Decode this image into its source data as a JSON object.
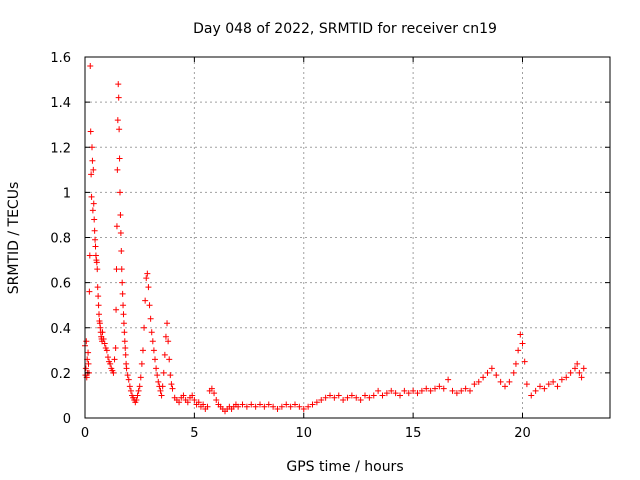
{
  "chart_data": {
    "type": "scatter",
    "title": "Day 048 of 2022, SRMTID for receiver cn19",
    "xlabel": "GPS time / hours",
    "ylabel": "SRMTID / TECUs",
    "xlim": [
      0,
      24
    ],
    "ylim": [
      0,
      1.6
    ],
    "xticks": [
      0,
      5,
      10,
      15,
      20
    ],
    "xtick_labels": [
      "0",
      "5",
      "10",
      "15",
      "20"
    ],
    "yticks": [
      0,
      0.2,
      0.4,
      0.6,
      0.8,
      1.0,
      1.2,
      1.4,
      1.6
    ],
    "ytick_labels": [
      "0",
      "0.2",
      "0.4",
      "0.6",
      "0.8",
      "1",
      "1.2",
      "1.4",
      "1.6"
    ],
    "grid": true,
    "marker": "+",
    "color": "#ff0000",
    "series": [
      {
        "name": "SRMTID",
        "points": [
          [
            0.0,
            0.32
          ],
          [
            0.02,
            0.19
          ],
          [
            0.04,
            0.22
          ],
          [
            0.06,
            0.34
          ],
          [
            0.08,
            0.18
          ],
          [
            0.1,
            0.26
          ],
          [
            0.12,
            0.2
          ],
          [
            0.14,
            0.29
          ],
          [
            0.16,
            0.24
          ],
          [
            0.18,
            0.2
          ],
          [
            0.2,
            0.56
          ],
          [
            0.22,
            0.72
          ],
          [
            0.24,
            1.56
          ],
          [
            0.26,
            1.27
          ],
          [
            0.28,
            1.08
          ],
          [
            0.3,
            0.98
          ],
          [
            0.32,
            1.2
          ],
          [
            0.34,
            1.14
          ],
          [
            0.36,
            0.92
          ],
          [
            0.38,
            1.1
          ],
          [
            0.4,
            0.95
          ],
          [
            0.42,
            0.88
          ],
          [
            0.44,
            0.83
          ],
          [
            0.46,
            0.79
          ],
          [
            0.48,
            0.76
          ],
          [
            0.5,
            0.72
          ],
          [
            0.52,
            0.7
          ],
          [
            0.54,
            0.69
          ],
          [
            0.56,
            0.66
          ],
          [
            0.58,
            0.58
          ],
          [
            0.6,
            0.54
          ],
          [
            0.62,
            0.5
          ],
          [
            0.64,
            0.46
          ],
          [
            0.66,
            0.43
          ],
          [
            0.68,
            0.42
          ],
          [
            0.7,
            0.4
          ],
          [
            0.72,
            0.38
          ],
          [
            0.74,
            0.36
          ],
          [
            0.76,
            0.35
          ],
          [
            0.78,
            0.34
          ],
          [
            0.8,
            0.38
          ],
          [
            0.85,
            0.35
          ],
          [
            0.9,
            0.33
          ],
          [
            0.95,
            0.31
          ],
          [
            1.0,
            0.3
          ],
          [
            1.05,
            0.27
          ],
          [
            1.1,
            0.25
          ],
          [
            1.15,
            0.24
          ],
          [
            1.2,
            0.22
          ],
          [
            1.25,
            0.21
          ],
          [
            1.3,
            0.2
          ],
          [
            1.35,
            0.26
          ],
          [
            1.4,
            0.31
          ],
          [
            1.42,
            0.48
          ],
          [
            1.44,
            0.66
          ],
          [
            1.46,
            0.85
          ],
          [
            1.48,
            1.1
          ],
          [
            1.5,
            1.32
          ],
          [
            1.52,
            1.48
          ],
          [
            1.54,
            1.42
          ],
          [
            1.56,
            1.28
          ],
          [
            1.58,
            1.15
          ],
          [
            1.6,
            1.0
          ],
          [
            1.62,
            0.9
          ],
          [
            1.64,
            0.82
          ],
          [
            1.66,
            0.74
          ],
          [
            1.68,
            0.66
          ],
          [
            1.7,
            0.6
          ],
          [
            1.72,
            0.55
          ],
          [
            1.74,
            0.5
          ],
          [
            1.76,
            0.46
          ],
          [
            1.78,
            0.42
          ],
          [
            1.8,
            0.38
          ],
          [
            1.82,
            0.34
          ],
          [
            1.84,
            0.31
          ],
          [
            1.86,
            0.28
          ],
          [
            1.88,
            0.24
          ],
          [
            1.9,
            0.22
          ],
          [
            1.95,
            0.19
          ],
          [
            2.0,
            0.17
          ],
          [
            2.05,
            0.14
          ],
          [
            2.1,
            0.12
          ],
          [
            2.15,
            0.1
          ],
          [
            2.2,
            0.09
          ],
          [
            2.25,
            0.08
          ],
          [
            2.3,
            0.07
          ],
          [
            2.35,
            0.08
          ],
          [
            2.4,
            0.1
          ],
          [
            2.45,
            0.12
          ],
          [
            2.5,
            0.14
          ],
          [
            2.55,
            0.18
          ],
          [
            2.6,
            0.24
          ],
          [
            2.65,
            0.3
          ],
          [
            2.7,
            0.4
          ],
          [
            2.75,
            0.52
          ],
          [
            2.8,
            0.62
          ],
          [
            2.85,
            0.64
          ],
          [
            2.9,
            0.58
          ],
          [
            2.95,
            0.5
          ],
          [
            3.0,
            0.44
          ],
          [
            3.05,
            0.38
          ],
          [
            3.1,
            0.34
          ],
          [
            3.15,
            0.3
          ],
          [
            3.2,
            0.26
          ],
          [
            3.25,
            0.22
          ],
          [
            3.3,
            0.19
          ],
          [
            3.35,
            0.16
          ],
          [
            3.4,
            0.14
          ],
          [
            3.45,
            0.12
          ],
          [
            3.5,
            0.1
          ],
          [
            3.55,
            0.14
          ],
          [
            3.6,
            0.2
          ],
          [
            3.65,
            0.28
          ],
          [
            3.7,
            0.36
          ],
          [
            3.75,
            0.42
          ],
          [
            3.8,
            0.34
          ],
          [
            3.85,
            0.26
          ],
          [
            3.9,
            0.19
          ],
          [
            3.95,
            0.15
          ],
          [
            4.0,
            0.13
          ],
          [
            4.1,
            0.09
          ],
          [
            4.2,
            0.08
          ],
          [
            4.3,
            0.07
          ],
          [
            4.4,
            0.09
          ],
          [
            4.5,
            0.1
          ],
          [
            4.6,
            0.08
          ],
          [
            4.7,
            0.07
          ],
          [
            4.8,
            0.09
          ],
          [
            4.9,
            0.1
          ],
          [
            5.0,
            0.08
          ],
          [
            5.1,
            0.06
          ],
          [
            5.2,
            0.07
          ],
          [
            5.3,
            0.05
          ],
          [
            5.4,
            0.06
          ],
          [
            5.5,
            0.04
          ],
          [
            5.6,
            0.05
          ],
          [
            5.7,
            0.12
          ],
          [
            5.8,
            0.13
          ],
          [
            5.9,
            0.11
          ],
          [
            6.0,
            0.08
          ],
          [
            6.1,
            0.06
          ],
          [
            6.2,
            0.05
          ],
          [
            6.3,
            0.04
          ],
          [
            6.4,
            0.03
          ],
          [
            6.5,
            0.04
          ],
          [
            6.6,
            0.05
          ],
          [
            6.7,
            0.04
          ],
          [
            6.8,
            0.05
          ],
          [
            6.9,
            0.06
          ],
          [
            7.0,
            0.05
          ],
          [
            7.2,
            0.06
          ],
          [
            7.4,
            0.05
          ],
          [
            7.6,
            0.06
          ],
          [
            7.8,
            0.05
          ],
          [
            8.0,
            0.06
          ],
          [
            8.2,
            0.05
          ],
          [
            8.4,
            0.06
          ],
          [
            8.6,
            0.05
          ],
          [
            8.8,
            0.04
          ],
          [
            9.0,
            0.05
          ],
          [
            9.2,
            0.06
          ],
          [
            9.4,
            0.05
          ],
          [
            9.6,
            0.06
          ],
          [
            9.8,
            0.05
          ],
          [
            10.0,
            0.04
          ],
          [
            10.2,
            0.05
          ],
          [
            10.4,
            0.06
          ],
          [
            10.6,
            0.07
          ],
          [
            10.8,
            0.08
          ],
          [
            11.0,
            0.09
          ],
          [
            11.2,
            0.1
          ],
          [
            11.4,
            0.09
          ],
          [
            11.6,
            0.1
          ],
          [
            11.8,
            0.08
          ],
          [
            12.0,
            0.09
          ],
          [
            12.2,
            0.1
          ],
          [
            12.4,
            0.09
          ],
          [
            12.6,
            0.08
          ],
          [
            12.8,
            0.1
          ],
          [
            13.0,
            0.09
          ],
          [
            13.2,
            0.1
          ],
          [
            13.4,
            0.12
          ],
          [
            13.6,
            0.1
          ],
          [
            13.8,
            0.11
          ],
          [
            14.0,
            0.12
          ],
          [
            14.2,
            0.11
          ],
          [
            14.4,
            0.1
          ],
          [
            14.6,
            0.12
          ],
          [
            14.8,
            0.11
          ],
          [
            15.0,
            0.12
          ],
          [
            15.2,
            0.11
          ],
          [
            15.4,
            0.12
          ],
          [
            15.6,
            0.13
          ],
          [
            15.8,
            0.12
          ],
          [
            16.0,
            0.13
          ],
          [
            16.2,
            0.14
          ],
          [
            16.4,
            0.13
          ],
          [
            16.6,
            0.17
          ],
          [
            16.8,
            0.12
          ],
          [
            17.0,
            0.11
          ],
          [
            17.2,
            0.12
          ],
          [
            17.4,
            0.13
          ],
          [
            17.6,
            0.12
          ],
          [
            17.8,
            0.15
          ],
          [
            18.0,
            0.16
          ],
          [
            18.2,
            0.18
          ],
          [
            18.4,
            0.2
          ],
          [
            18.6,
            0.22
          ],
          [
            18.8,
            0.19
          ],
          [
            19.0,
            0.16
          ],
          [
            19.2,
            0.14
          ],
          [
            19.4,
            0.16
          ],
          [
            19.6,
            0.2
          ],
          [
            19.7,
            0.24
          ],
          [
            19.8,
            0.3
          ],
          [
            19.9,
            0.37
          ],
          [
            20.0,
            0.33
          ],
          [
            20.1,
            0.25
          ],
          [
            20.2,
            0.15
          ],
          [
            20.4,
            0.1
          ],
          [
            20.6,
            0.12
          ],
          [
            20.8,
            0.14
          ],
          [
            21.0,
            0.13
          ],
          [
            21.2,
            0.15
          ],
          [
            21.4,
            0.16
          ],
          [
            21.6,
            0.14
          ],
          [
            21.8,
            0.17
          ],
          [
            22.0,
            0.18
          ],
          [
            22.2,
            0.2
          ],
          [
            22.4,
            0.22
          ],
          [
            22.5,
            0.24
          ],
          [
            22.6,
            0.2
          ],
          [
            22.7,
            0.18
          ],
          [
            22.8,
            0.22
          ]
        ]
      }
    ]
  }
}
